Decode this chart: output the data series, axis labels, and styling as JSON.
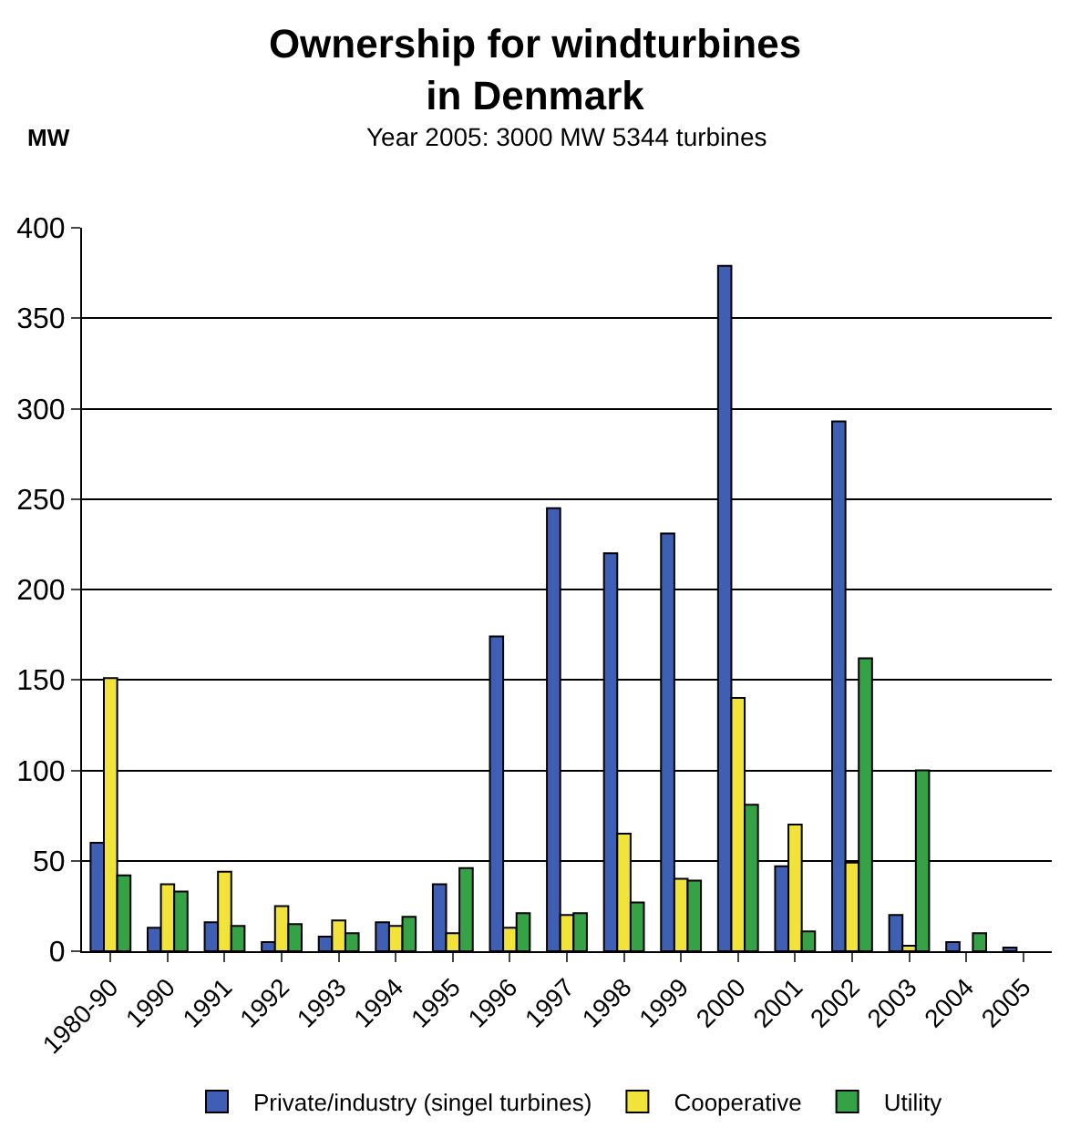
{
  "chart_data": {
    "type": "bar",
    "title": "Ownership for windturbines\nin Denmark",
    "subtitle": "Year 2005: 3000 MW 5344 turbines",
    "ylabel": "MW",
    "categories": [
      "1980-90",
      "1990",
      "1991",
      "1992",
      "1993",
      "1994",
      "1995",
      "1996",
      "1997",
      "1998",
      "1999",
      "2000",
      "2001",
      "2002",
      "2003",
      "2004",
      "2005"
    ],
    "series": [
      {
        "name": "Private/industry (singel turbines)",
        "color": "#3f5fb5",
        "values": [
          60,
          13,
          16,
          5,
          8,
          16,
          37,
          174,
          245,
          220,
          231,
          379,
          47,
          293,
          20,
          5,
          2
        ]
      },
      {
        "name": "Cooperative",
        "color": "#f2e33a",
        "values": [
          151,
          37,
          44,
          25,
          17,
          14,
          10,
          13,
          20,
          65,
          40,
          140,
          70,
          49,
          3,
          null,
          null
        ]
      },
      {
        "name": "Utility",
        "color": "#35a345",
        "values": [
          42,
          33,
          14,
          15,
          10,
          19,
          46,
          21,
          21,
          27,
          39,
          81,
          11,
          162,
          100,
          10,
          null
        ]
      }
    ],
    "ylim": [
      0,
      400
    ],
    "yticks": [
      0,
      50,
      100,
      150,
      200,
      250,
      300,
      350,
      400
    ],
    "grid": "y",
    "legend": "bottom"
  }
}
